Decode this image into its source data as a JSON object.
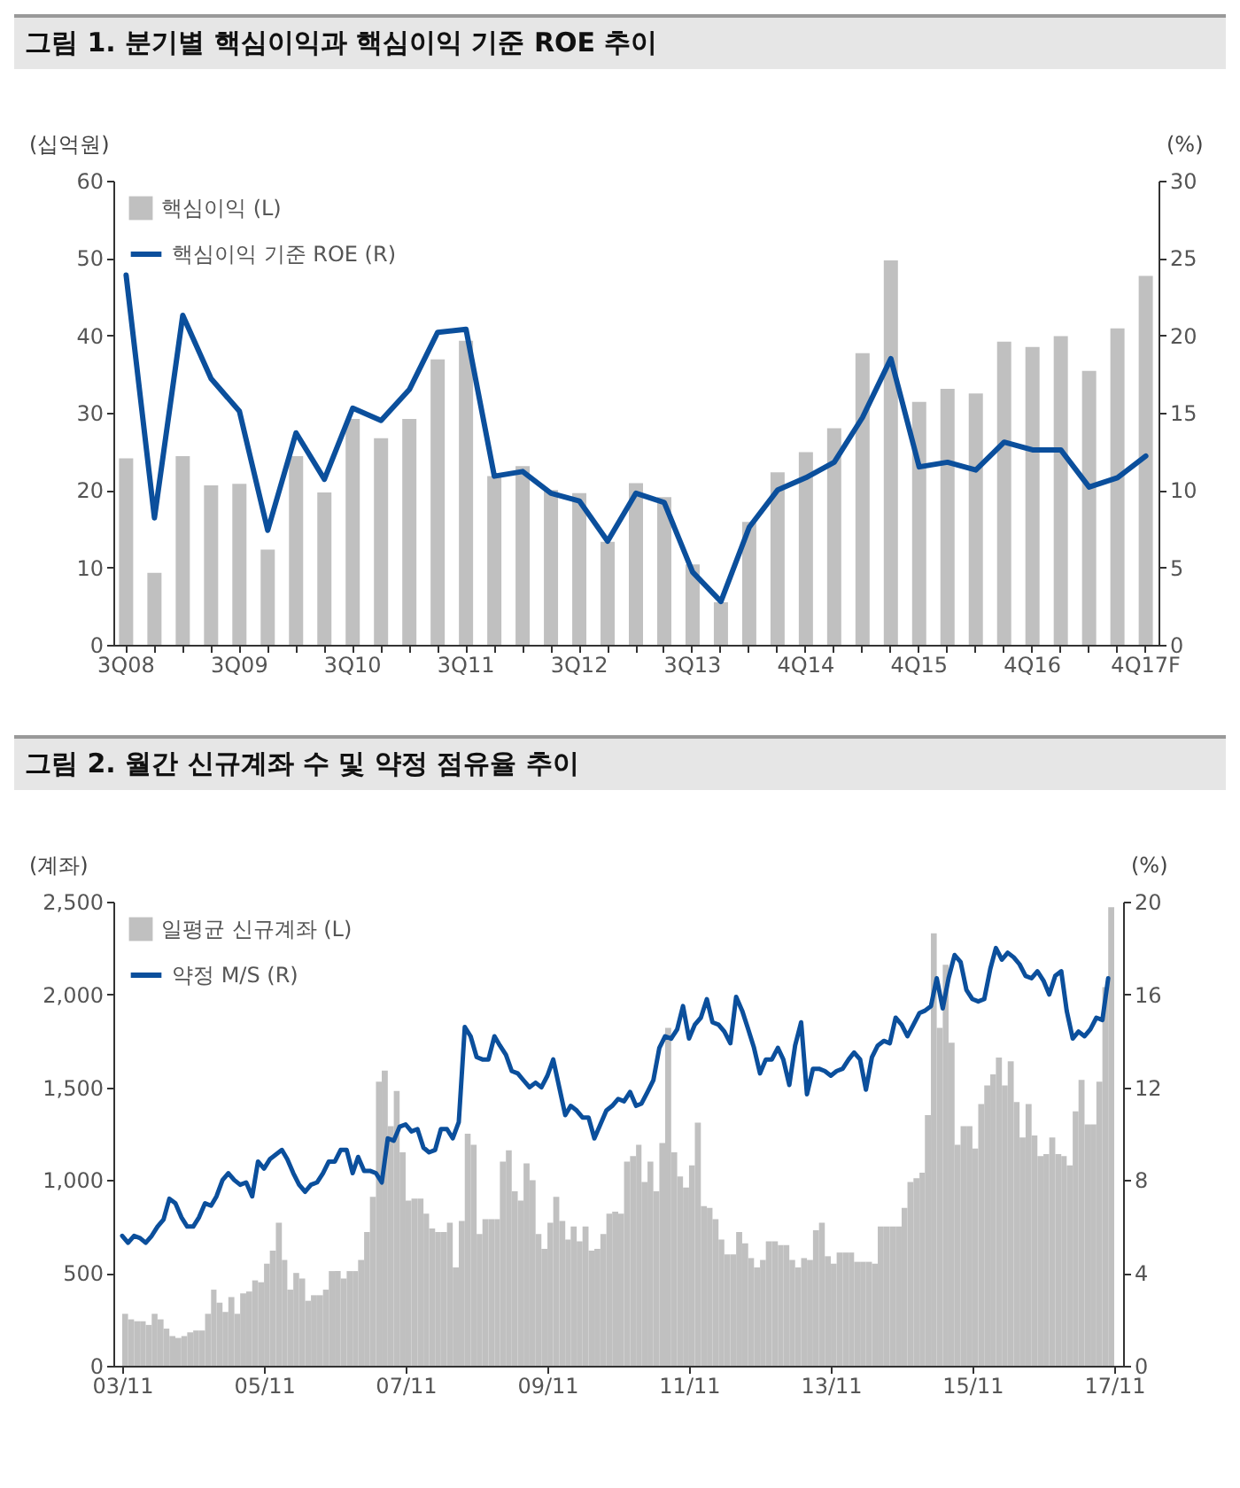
{
  "chart_data": [
    {
      "type": "bar",
      "title": "그림 1. 분기별 핵심이익과 핵심이익 기준 ROE 추이",
      "ylabel": "(십억원)",
      "y2label": "(%)",
      "categories": [
        "3Q08",
        null,
        null,
        null,
        "3Q09",
        null,
        null,
        null,
        "3Q10",
        null,
        null,
        null,
        "3Q11",
        null,
        null,
        null,
        "3Q12",
        null,
        null,
        null,
        "3Q13",
        null,
        null,
        null,
        "4Q14",
        null,
        null,
        null,
        "4Q15",
        null,
        null,
        null,
        "4Q16",
        null,
        null,
        null,
        "4Q17F"
      ],
      "series": [
        {
          "name": "핵심이익 (L)",
          "color": "#c0c0c0",
          "values": [
            24.1,
            9.3,
            24.4,
            20.6,
            20.8,
            12.3,
            24.4,
            19.7,
            29.2,
            26.7,
            29.2,
            36.9,
            39.3,
            21.8,
            23.1,
            20,
            19.6,
            13.3,
            20.9,
            19.1,
            10.4,
            5.5,
            15.9,
            22.3,
            24.9,
            28.0,
            37.7,
            49.7,
            31.4,
            33.1,
            32.5,
            39.2,
            38.5,
            39.9,
            35.4,
            40.9,
            47.7
          ]
        },
        {
          "name": "핵심이익 기준 ROE (R)",
          "type": "line",
          "axis": "y2",
          "color": "#0b4f9c",
          "values": [
            23.9,
            8.2,
            21.3,
            17.2,
            15.1,
            7.4,
            13.7,
            10.7,
            15.3,
            14.5,
            16.5,
            20.2,
            20.4,
            10.9,
            11.2,
            9.8,
            9.3,
            6.7,
            9.8,
            9.2,
            4.7,
            2.8,
            7.6,
            10.0,
            10.8,
            11.8,
            14.7,
            18.5,
            11.5,
            11.8,
            11.3,
            13.1,
            12.6,
            12.6,
            10.2,
            10.8,
            12.2
          ]
        }
      ],
      "ylim": [
        0,
        60
      ],
      "yticks": [
        0,
        10,
        20,
        30,
        40,
        50,
        60
      ],
      "y2lim": [
        0,
        30
      ],
      "y2ticks": [
        0,
        5,
        10,
        15,
        20,
        25,
        30
      ],
      "legend": "top left"
    },
    {
      "type": "bar",
      "title": "그림 2. 월간 신규계좌 수 및 약정 점유율 추이",
      "ylabel": "(계좌)",
      "y2label": "(%)",
      "x": [
        "2003-11",
        "2003-12",
        "2004-01",
        "2004-02",
        "2004-03",
        "2004-04",
        "2004-05",
        "2004-06",
        "2004-07",
        "2004-08",
        "2004-09",
        "2004-10",
        "2004-11",
        "2004-12",
        "2005-01",
        "2005-02",
        "2005-03",
        "2005-04",
        "2005-05",
        "2005-06",
        "2005-07",
        "2005-08",
        "2005-09",
        "2005-10",
        "2005-11",
        "2005-12",
        "2006-01",
        "2006-02",
        "2006-03",
        "2006-04",
        "2006-05",
        "2006-06",
        "2006-07",
        "2006-08",
        "2006-09",
        "2006-10",
        "2006-11",
        "2006-12",
        "2007-01",
        "2007-02",
        "2007-03",
        "2007-04",
        "2007-05",
        "2007-06",
        "2007-07",
        "2007-08",
        "2007-09",
        "2007-10",
        "2007-11",
        "2007-12",
        "2008-01",
        "2008-02",
        "2008-03",
        "2008-04",
        "2008-05",
        "2008-06",
        "2008-07",
        "2008-08",
        "2008-09",
        "2008-10",
        "2008-11",
        "2008-12",
        "2009-01",
        "2009-02",
        "2009-03",
        "2009-04",
        "2009-05",
        "2009-06",
        "2009-07",
        "2009-08",
        "2009-09",
        "2009-10",
        "2009-11",
        "2009-12",
        "2010-01",
        "2010-02",
        "2010-03",
        "2010-04",
        "2010-05",
        "2010-06",
        "2010-07",
        "2010-08",
        "2010-09",
        "2010-10",
        "2010-11",
        "2010-12",
        "2011-01",
        "2011-02",
        "2011-03",
        "2011-04",
        "2011-05",
        "2011-06",
        "2011-07",
        "2011-08",
        "2011-09",
        "2011-10",
        "2011-11",
        "2011-12",
        "2012-01",
        "2012-02",
        "2012-03",
        "2012-04",
        "2012-05",
        "2012-06",
        "2012-07",
        "2012-08",
        "2012-09",
        "2012-10",
        "2012-11",
        "2012-12",
        "2013-01",
        "2013-02",
        "2013-03",
        "2013-04",
        "2013-05",
        "2013-06",
        "2013-07",
        "2013-08",
        "2013-09",
        "2013-10",
        "2013-11",
        "2013-12",
        "2014-01",
        "2014-02",
        "2014-03",
        "2014-04",
        "2014-05",
        "2014-06",
        "2014-07",
        "2014-08",
        "2014-09",
        "2014-10",
        "2014-11",
        "2014-12",
        "2015-01",
        "2015-02",
        "2015-03",
        "2015-04",
        "2015-05",
        "2015-06",
        "2015-07",
        "2015-08",
        "2015-09",
        "2015-10",
        "2015-11",
        "2015-12",
        "2016-01",
        "2016-02",
        "2016-03",
        "2016-04",
        "2016-05",
        "2016-06",
        "2016-07",
        "2016-08",
        "2016-09",
        "2016-10",
        "2016-11",
        "2016-12",
        "2017-01",
        "2017-02",
        "2017-03",
        "2017-04",
        "2017-05",
        "2017-06",
        "2017-07",
        "2017-08",
        "2017-09",
        "2017-10"
      ],
      "series": [
        {
          "name": "일평균 신규계좌 (L)",
          "color": "#c0c0c0",
          "values": [
            280,
            250,
            240,
            240,
            220,
            280,
            250,
            200,
            160,
            150,
            160,
            180,
            190,
            190,
            280,
            410,
            340,
            290,
            370,
            280,
            390,
            400,
            460,
            450,
            550,
            620,
            770,
            570,
            410,
            500,
            470,
            350,
            380,
            380,
            410,
            510,
            510,
            470,
            510,
            510,
            570,
            720,
            910,
            1530,
            1590,
            1290,
            1480,
            1150,
            890,
            900,
            900,
            820,
            740,
            720,
            720,
            770,
            530,
            780,
            1250,
            1190,
            710,
            790,
            790,
            790,
            1100,
            1160,
            940,
            890,
            1090,
            1000,
            710,
            630,
            770,
            910,
            780,
            680,
            750,
            670,
            750,
            620,
            630,
            710,
            820,
            830,
            820,
            1100,
            1130,
            1190,
            990,
            1100,
            940,
            1200,
            1820,
            1150,
            1020,
            960,
            1080,
            1310,
            860,
            850,
            790,
            680,
            600,
            600,
            720,
            660,
            580,
            530,
            570,
            670,
            670,
            650,
            650,
            570,
            530,
            580,
            570,
            730,
            770,
            590,
            550,
            610,
            610,
            610,
            560,
            560,
            560,
            550,
            750,
            750,
            750,
            750,
            850,
            990,
            1010,
            1040,
            1350,
            2330,
            1820,
            2160,
            1740,
            1190,
            1290,
            1290,
            1170,
            1410,
            1510,
            1570,
            1660,
            1510,
            1640,
            1420,
            1230,
            1410,
            1240,
            1130,
            1140,
            1230,
            1140,
            1130,
            1080,
            1370,
            1540,
            1300,
            1300,
            1530,
            2040,
            2470
          ]
        },
        {
          "name": "약정 M/S (R)",
          "type": "line",
          "axis": "y2",
          "color": "#0b4f9c",
          "values": [
            5.6,
            5.3,
            5.6,
            5.5,
            5.3,
            5.6,
            6.0,
            6.3,
            7.2,
            7.0,
            6.4,
            6.0,
            6.0,
            6.4,
            7.0,
            6.9,
            7.3,
            8.0,
            8.3,
            8.0,
            7.8,
            7.9,
            7.3,
            8.8,
            8.5,
            8.9,
            9.1,
            9.3,
            8.9,
            8.3,
            7.8,
            7.5,
            7.8,
            7.9,
            8.3,
            8.8,
            8.8,
            9.3,
            9.3,
            8.3,
            9.0,
            8.4,
            8.4,
            8.3,
            7.9,
            9.8,
            9.7,
            10.3,
            10.4,
            10.1,
            10.2,
            9.4,
            9.2,
            9.3,
            10.2,
            10.2,
            9.8,
            10.5,
            14.6,
            14.2,
            13.3,
            13.2,
            13.2,
            14.2,
            13.8,
            13.4,
            12.7,
            12.6,
            12.3,
            12.0,
            12.2,
            12.0,
            12.5,
            13.2,
            12.0,
            10.8,
            11.2,
            11.0,
            10.7,
            10.7,
            9.8,
            10.4,
            11.0,
            11.2,
            11.5,
            11.4,
            11.8,
            11.2,
            11.3,
            11.8,
            12.3,
            13.7,
            14.2,
            14.1,
            14.5,
            15.5,
            14.1,
            14.7,
            15.0,
            15.8,
            14.8,
            14.7,
            14.4,
            13.9,
            15.9,
            15.3,
            14.5,
            13.7,
            12.6,
            13.2,
            13.2,
            13.7,
            13.2,
            12.1,
            13.8,
            14.8,
            11.7,
            12.8,
            12.8,
            12.7,
            12.5,
            12.7,
            12.8,
            13.2,
            13.5,
            13.2,
            11.9,
            13.3,
            13.8,
            14.0,
            13.9,
            15.0,
            14.7,
            14.2,
            14.7,
            15.2,
            15.3,
            15.5,
            16.7,
            15.4,
            16.7,
            17.7,
            17.4,
            16.2,
            15.8,
            15.7,
            15.8,
            17.1,
            18.0,
            17.5,
            17.8,
            17.6,
            17.3,
            16.8,
            16.7,
            17.0,
            16.6,
            16.0,
            16.8,
            17.0,
            15.3,
            14.1,
            14.4,
            14.2,
            14.5,
            15.0,
            14.9,
            16.7
          ]
        }
      ],
      "xlim": [
        "2003-11",
        "2017-11"
      ],
      "xticks": [
        {
          "value": "2003-11",
          "label": "03/11"
        },
        {
          "value": "2005-11",
          "label": "05/11"
        },
        {
          "value": "2007-11",
          "label": "07/11"
        },
        {
          "value": "2009-11",
          "label": "09/11"
        },
        {
          "value": "2011-11",
          "label": "11/11"
        },
        {
          "value": "2013-11",
          "label": "13/11"
        },
        {
          "value": "2015-11",
          "label": "15/11"
        },
        {
          "value": "2017-11",
          "label": "17/11"
        }
      ],
      "ylim": [
        0,
        2500
      ],
      "yticks": [
        0,
        500,
        {
          "value": 1000,
          "label": "1,000"
        },
        {
          "value": 1500,
          "label": "1,500"
        },
        {
          "value": 2000,
          "label": "2,000"
        },
        {
          "value": 2500,
          "label": "2,500"
        }
      ],
      "y2lim": [
        0,
        20
      ],
      "y2ticks": [
        0,
        4,
        8,
        12,
        16,
        20
      ],
      "legend": "top left"
    }
  ]
}
